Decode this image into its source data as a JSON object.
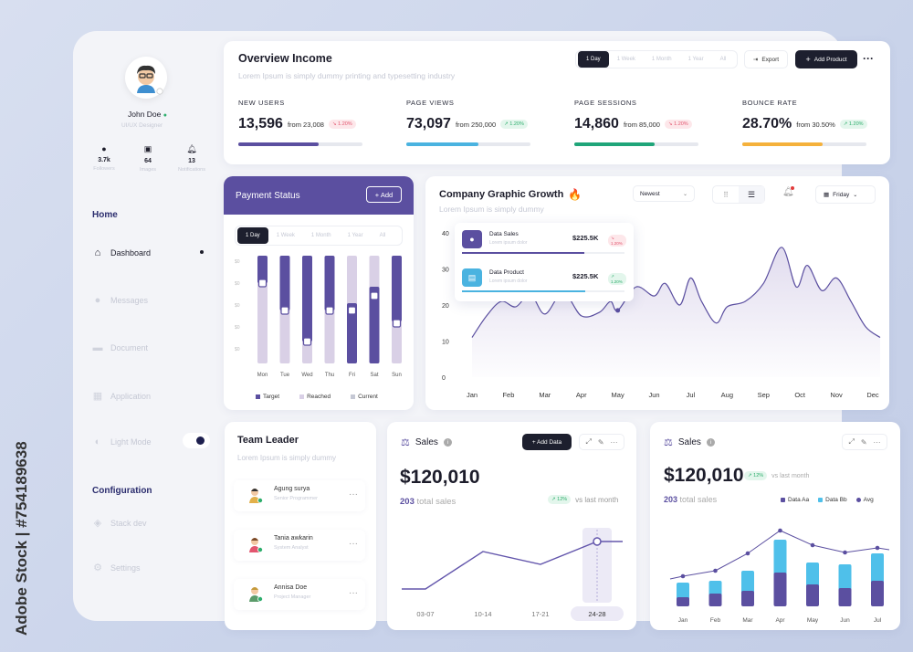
{
  "watermark": "Adobe Stock | #754189638",
  "profile": {
    "name": "John Doe",
    "role": "UI/UX Designer",
    "stats": [
      {
        "value": "3.7k",
        "label": "Followers",
        "icon": "user-icon"
      },
      {
        "value": "64",
        "label": "Images",
        "icon": "image-icon"
      },
      {
        "value": "13",
        "label": "Notifications",
        "icon": "bell-icon"
      }
    ]
  },
  "sidebar": {
    "home_title": "Home",
    "items": [
      {
        "label": "Dashboard",
        "icon": "home-icon",
        "active": true
      },
      {
        "label": "Messages",
        "icon": "message-icon"
      },
      {
        "label": "Document",
        "icon": "document-icon"
      },
      {
        "label": "Application",
        "icon": "grid-icon"
      },
      {
        "label": "Light Mode",
        "icon": "half-circle-icon"
      }
    ],
    "config_title": "Configuration",
    "config_items": [
      {
        "label": "Stack dev",
        "icon": "layers-icon"
      },
      {
        "label": "Settings",
        "icon": "gear-icon"
      }
    ]
  },
  "overview": {
    "title": "Overview Income",
    "subtitle": "Lorem Ipsum is simply dummy  printing and typesetting industry",
    "ranges": [
      "1 Day",
      "1 Week",
      "1 Month",
      "1 Year",
      "All"
    ],
    "export": "Export",
    "add_product": "Add Product",
    "stats": [
      {
        "label": "NEW USERS",
        "value": "13,596",
        "from": "from 23,008",
        "badge": "↘ 1.20%",
        "trend": "down",
        "progress": 0.65,
        "color": "#5b4fa0"
      },
      {
        "label": "PAGE VIEWS",
        "value": "73,097",
        "from": "from 250,000",
        "badge": "↗ 1.20%",
        "trend": "up",
        "progress": 0.58,
        "color": "#4ab3e0"
      },
      {
        "label": "PAGE SESSIONS",
        "value": "14,860",
        "from": "from 85,000",
        "badge": "↘ 1.20%",
        "trend": "down",
        "progress": 0.65,
        "color": "#1fa579"
      },
      {
        "label": "BOUNCE RATE",
        "value": "28.70%",
        "from": "from 30.50%",
        "badge": "↗ 1.20%",
        "trend": "up",
        "progress": 0.65,
        "color": "#f5b13b"
      }
    ]
  },
  "payment": {
    "title": "Payment Status",
    "add": "+ Add",
    "ranges": [
      "1 Day",
      "1 Week",
      "1 Month",
      "1 Year",
      "All"
    ],
    "yticks": [
      "$0",
      "$0",
      "$0",
      "$0",
      "$0"
    ],
    "chart_data": {
      "type": "bar",
      "categories": [
        "Mon",
        "Tue",
        "Wed",
        "Thu",
        "Fri",
        "Sat",
        "Sun"
      ],
      "target": [
        100,
        100,
        100,
        100,
        100,
        100,
        100
      ],
      "reached": [
        78,
        66,
        20,
        64,
        58,
        80,
        80
      ],
      "current": [
        78,
        66,
        20,
        64,
        58,
        80,
        80
      ]
    },
    "legend": [
      "Target",
      "Reached",
      "Current"
    ]
  },
  "growth": {
    "title": "Company Graphic Growth",
    "subtitle": "Lorem Ipsum is simply dummy",
    "filter": "Newest",
    "day": "Friday",
    "tooltip": [
      {
        "name": "Data Sales",
        "sub": "Lorem ipsum dolor",
        "value": "$225.5K",
        "badge": "↘ 1.20%",
        "trend": "down"
      },
      {
        "name": "Data Product",
        "sub": "Lorem ipsum dolor",
        "value": "$225.5K",
        "badge": "↗ 1.20%",
        "trend": "up"
      }
    ],
    "chart_data": {
      "type": "area",
      "x": [
        "Jan",
        "Feb",
        "Mar",
        "Apr",
        "May",
        "Jun",
        "Jul",
        "Aug",
        "Sep",
        "Oct",
        "Nov",
        "Dec"
      ],
      "yticks": [
        0,
        10,
        20,
        30,
        40
      ],
      "ylim": [
        0,
        40
      ],
      "points": [
        [
          0,
          11
        ],
        [
          0.4,
          17
        ],
        [
          0.8,
          21
        ],
        [
          1.2,
          19.5
        ],
        [
          1.6,
          23
        ],
        [
          2.0,
          17.5
        ],
        [
          2.5,
          23.5
        ],
        [
          3.0,
          17
        ],
        [
          3.5,
          18
        ],
        [
          3.8,
          21
        ],
        [
          4.0,
          18.5
        ],
        [
          4.5,
          25
        ],
        [
          5.0,
          22.5
        ],
        [
          5.3,
          26
        ],
        [
          5.7,
          20
        ],
        [
          6.0,
          27.5
        ],
        [
          6.3,
          21
        ],
        [
          6.7,
          15
        ],
        [
          7.0,
          19.5
        ],
        [
          7.5,
          21
        ],
        [
          8.0,
          26
        ],
        [
          8.5,
          36
        ],
        [
          8.9,
          25
        ],
        [
          9.2,
          31
        ],
        [
          9.6,
          24
        ],
        [
          10.0,
          27.5
        ],
        [
          10.4,
          21
        ],
        [
          10.8,
          14
        ],
        [
          11.2,
          11
        ]
      ]
    }
  },
  "team": {
    "title": "Team Leader",
    "subtitle": "Lorem Ipsum is simply dummy",
    "members": [
      {
        "name": "Agung surya",
        "role": "Senior Programmer"
      },
      {
        "name": "Tania awkarin",
        "role": "System Analyst"
      },
      {
        "name": "Annisa Doe",
        "role": "Project Manager"
      }
    ]
  },
  "sales1": {
    "title": "Sales",
    "add": "+ Add Data",
    "total": "$120,010",
    "count": "203",
    "count_label": "total sales",
    "badge": "↗ 12%",
    "vs": "vs last month",
    "chart_data": {
      "type": "line",
      "x": [
        "03-07",
        "10-14",
        "17-21",
        "24-28"
      ],
      "values": [
        1,
        7,
        3,
        9
      ],
      "highlight": "24-28"
    }
  },
  "sales2": {
    "title": "Sales",
    "total": "$120,010",
    "badge": "↗ 12%",
    "vs": "vs last month",
    "count": "203",
    "count_label": "total sales",
    "legend": [
      "Data Aa",
      "Data Bb",
      "Avg"
    ],
    "chart_data": {
      "type": "bar",
      "categories": [
        "Jan",
        "Feb",
        "Mar",
        "Apr",
        "May",
        "Jun",
        "Jul"
      ],
      "series": [
        {
          "name": "Data Aa",
          "values": [
            10,
            14,
            17,
            37,
            24,
            20,
            28
          ]
        },
        {
          "name": "Data Bb",
          "values": [
            16,
            14,
            22,
            36,
            24,
            26,
            30
          ]
        }
      ],
      "avg": [
        33,
        39,
        58,
        83,
        67,
        59,
        64
      ]
    }
  }
}
